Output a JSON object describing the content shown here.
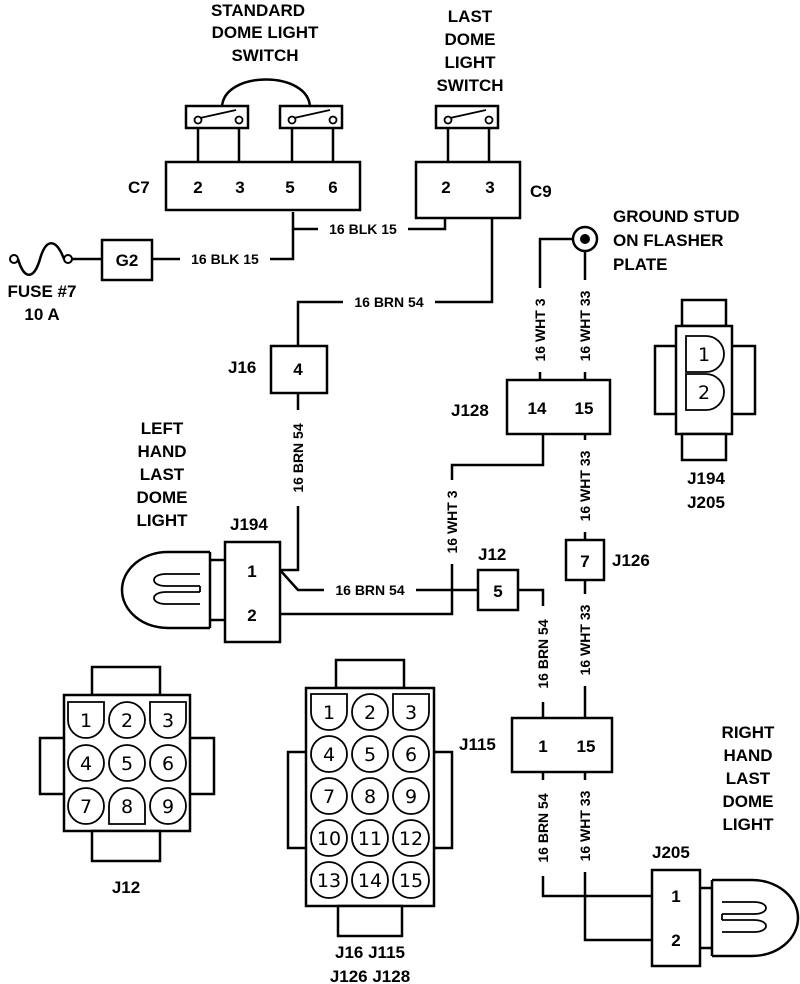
{
  "labels": {
    "std_switch": [
      "STANDARD",
      "DOME LIGHT",
      "SWITCH"
    ],
    "last_switch": [
      "LAST",
      "DOME",
      "LIGHT",
      "SWITCH"
    ],
    "ground": [
      "GROUND STUD",
      "ON FLASHER",
      "PLATE"
    ],
    "fuse": [
      "FUSE #7",
      "10 A"
    ],
    "left_light": [
      "LEFT",
      "HAND",
      "LAST",
      "DOME",
      "LIGHT"
    ],
    "right_light": [
      "RIGHT",
      "HAND",
      "LAST",
      "DOME",
      "LIGHT"
    ],
    "j194_j205_legend": [
      "J194",
      "J205"
    ],
    "j12_legend": "J12",
    "multi_legend": [
      "J16 J115",
      "J126 J128"
    ]
  },
  "connectors": {
    "c7": {
      "name": "C7",
      "pins": [
        "2",
        "3",
        "5",
        "6"
      ]
    },
    "c9": {
      "name": "C9",
      "pins": [
        "2",
        "3"
      ]
    },
    "g2": {
      "name": "G2"
    },
    "j16": {
      "name": "J16",
      "pin": "4"
    },
    "j128": {
      "name": "J128",
      "pins": [
        "14",
        "15"
      ]
    },
    "j194": {
      "name": "J194",
      "pins": [
        "1",
        "2"
      ]
    },
    "j12": {
      "name": "J12",
      "pin": "5"
    },
    "j126": {
      "name": "J126",
      "pin": "7"
    },
    "j115": {
      "name": "J115",
      "pins": [
        "1",
        "15"
      ]
    },
    "j205": {
      "name": "J205",
      "pins": [
        "1",
        "2"
      ]
    }
  },
  "wires": {
    "blk_c7": "16 BLK 15",
    "blk_fuse": "16 BLK 15",
    "brn_top": "16 BRN 54",
    "brn_j16": "16 BRN 54",
    "brn_j194": "16 BRN 54",
    "brn_j115_top": "16 BRN 54",
    "brn_j115_bottom": "16 BRN 54",
    "wht3_top": "16 WHT 3",
    "wht3_mid": "16 WHT 3",
    "wht33_top": "16 WHT 33",
    "wht33_a": "16 WHT 33",
    "wht33_b": "16 WHT 33",
    "wht33_c": "16 WHT 33"
  },
  "cavities": {
    "j194_face": [
      "1",
      "2"
    ],
    "j12_face": [
      "1",
      "2",
      "3",
      "4",
      "5",
      "6",
      "7",
      "8",
      "9"
    ],
    "multi_face": [
      "1",
      "2",
      "3",
      "4",
      "5",
      "6",
      "7",
      "8",
      "9",
      "10",
      "11",
      "12",
      "13",
      "14",
      "15"
    ]
  }
}
